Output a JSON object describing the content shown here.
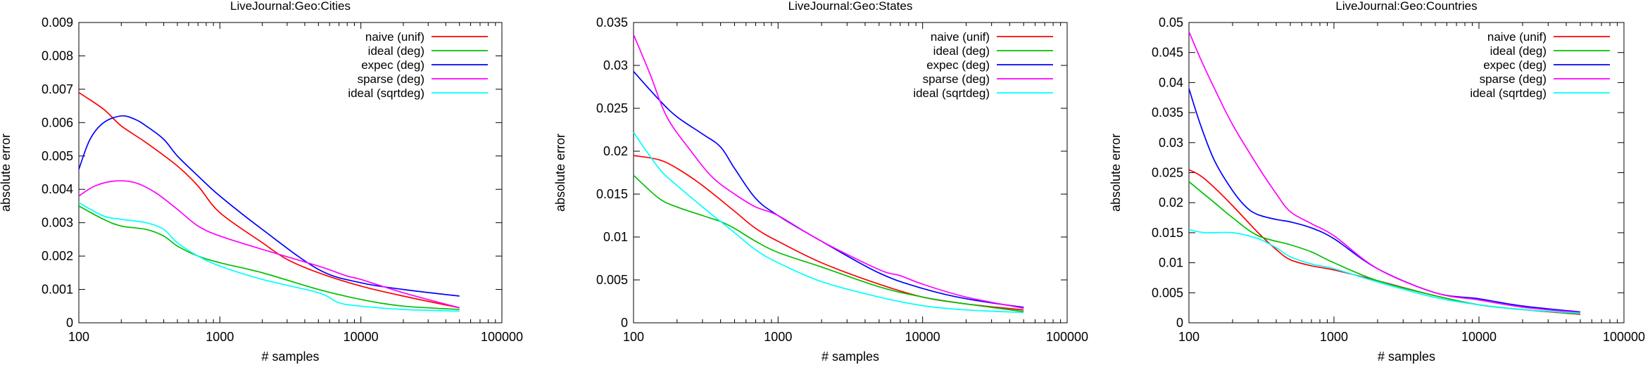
{
  "chart_data": [
    {
      "type": "line",
      "title": "LiveJournal:Geo:Cities",
      "xlabel": "# samples",
      "ylabel": "absolute error",
      "xscale": "log",
      "xlim": [
        100,
        100000
      ],
      "ylim": [
        0,
        0.009
      ],
      "xticks": [
        "100",
        "1000",
        "10000",
        "100000"
      ],
      "yticks": [
        "0",
        "0.001",
        "0.002",
        "0.003",
        "0.004",
        "0.005",
        "0.006",
        "0.007",
        "0.008",
        "0.009"
      ],
      "legend_position": "top-right",
      "series": [
        {
          "name": "naive (unif)",
          "color": "#ff0000",
          "x": [
            100,
            150,
            200,
            300,
            500,
            700,
            1000,
            2000,
            3000,
            5000,
            10000,
            20000,
            50000
          ],
          "y": [
            0.0069,
            0.0064,
            0.0059,
            0.0054,
            0.0047,
            0.0041,
            0.0033,
            0.0024,
            0.0019,
            0.0015,
            0.0011,
            0.0008,
            0.00045
          ]
        },
        {
          "name": "ideal (deg)",
          "color": "#00c000",
          "x": [
            100,
            150,
            200,
            300,
            400,
            500,
            700,
            1000,
            2000,
            5000,
            10000,
            20000,
            50000
          ],
          "y": [
            0.0035,
            0.0031,
            0.0029,
            0.0028,
            0.0026,
            0.0023,
            0.002,
            0.0018,
            0.0015,
            0.001,
            0.0007,
            0.0005,
            0.0004
          ]
        },
        {
          "name": "expec (deg)",
          "color": "#0000ff",
          "x": [
            100,
            120,
            150,
            200,
            250,
            300,
            400,
            500,
            700,
            1000,
            2000,
            5000,
            10000,
            20000,
            50000
          ],
          "y": [
            0.0046,
            0.0055,
            0.006,
            0.0062,
            0.0061,
            0.0059,
            0.0055,
            0.005,
            0.0044,
            0.0038,
            0.0028,
            0.0016,
            0.0012,
            0.001,
            0.0008
          ]
        },
        {
          "name": "sparse (deg)",
          "color": "#ff00ff",
          "x": [
            100,
            130,
            180,
            250,
            350,
            500,
            700,
            1000,
            2000,
            5000,
            8000,
            10000,
            20000,
            50000
          ],
          "y": [
            0.0038,
            0.0041,
            0.00425,
            0.0042,
            0.0039,
            0.0034,
            0.0029,
            0.0026,
            0.0022,
            0.0017,
            0.0014,
            0.0013,
            0.0009,
            0.00045
          ]
        },
        {
          "name": "ideal (sqrtdeg)",
          "color": "#00ffff",
          "x": [
            100,
            150,
            200,
            300,
            400,
            500,
            700,
            1000,
            2000,
            5000,
            7000,
            10000,
            20000,
            50000
          ],
          "y": [
            0.0036,
            0.0032,
            0.0031,
            0.003,
            0.0028,
            0.0024,
            0.002,
            0.0017,
            0.0013,
            0.0009,
            0.0006,
            0.0005,
            0.0004,
            0.00035
          ]
        }
      ]
    },
    {
      "type": "line",
      "title": "LiveJournal:Geo:States",
      "xlabel": "# samples",
      "ylabel": "absolute error",
      "xscale": "log",
      "xlim": [
        100,
        100000
      ],
      "ylim": [
        0,
        0.035
      ],
      "xticks": [
        "100",
        "1000",
        "10000",
        "100000"
      ],
      "yticks": [
        "0",
        "0.005",
        "0.01",
        "0.015",
        "0.02",
        "0.025",
        "0.03",
        "0.035"
      ],
      "legend_position": "top-right",
      "series": [
        {
          "name": "naive (unif)",
          "color": "#ff0000",
          "x": [
            100,
            150,
            200,
            300,
            500,
            700,
            1000,
            2000,
            5000,
            10000,
            20000,
            50000
          ],
          "y": [
            0.0195,
            0.019,
            0.018,
            0.016,
            0.013,
            0.011,
            0.0095,
            0.007,
            0.0045,
            0.003,
            0.0022,
            0.0015
          ]
        },
        {
          "name": "ideal (deg)",
          "color": "#00c000",
          "x": [
            100,
            150,
            200,
            300,
            400,
            500,
            700,
            1000,
            2000,
            5000,
            10000,
            20000,
            50000
          ],
          "y": [
            0.0172,
            0.0145,
            0.0135,
            0.0125,
            0.0118,
            0.011,
            0.0095,
            0.0082,
            0.0065,
            0.0042,
            0.003,
            0.0022,
            0.0013
          ]
        },
        {
          "name": "expec (deg)",
          "color": "#0000ff",
          "x": [
            100,
            150,
            200,
            300,
            400,
            500,
            700,
            1000,
            2000,
            5000,
            10000,
            20000,
            50000
          ],
          "y": [
            0.0293,
            0.026,
            0.024,
            0.022,
            0.0205,
            0.018,
            0.0145,
            0.0125,
            0.0095,
            0.0058,
            0.004,
            0.0028,
            0.0018
          ]
        },
        {
          "name": "sparse (deg)",
          "color": "#ff00ff",
          "x": [
            100,
            130,
            170,
            250,
            350,
            500,
            700,
            1000,
            2000,
            5000,
            7000,
            10000,
            20000,
            50000
          ],
          "y": [
            0.0336,
            0.029,
            0.024,
            0.02,
            0.017,
            0.015,
            0.0135,
            0.0125,
            0.0095,
            0.0062,
            0.0055,
            0.0045,
            0.003,
            0.0017
          ]
        },
        {
          "name": "ideal (sqrtdeg)",
          "color": "#00ffff",
          "x": [
            100,
            150,
            200,
            300,
            500,
            700,
            1000,
            2000,
            5000,
            10000,
            20000,
            50000
          ],
          "y": [
            0.0222,
            0.018,
            0.016,
            0.0135,
            0.0105,
            0.0085,
            0.007,
            0.0048,
            0.003,
            0.002,
            0.0015,
            0.0012
          ]
        }
      ]
    },
    {
      "type": "line",
      "title": "LiveJournal:Geo:Countries",
      "xlabel": "# samples",
      "ylabel": "absolute error",
      "xscale": "log",
      "xlim": [
        100,
        100000
      ],
      "ylim": [
        0,
        0.05
      ],
      "xticks": [
        "100",
        "1000",
        "10000",
        "100000"
      ],
      "yticks": [
        "0",
        "0.005",
        "0.01",
        "0.015",
        "0.02",
        "0.025",
        "0.03",
        "0.035",
        "0.04",
        "0.045",
        "0.05"
      ],
      "legend_position": "top-right",
      "series": [
        {
          "name": "naive (unif)",
          "color": "#ff0000",
          "x": [
            100,
            120,
            150,
            200,
            300,
            400,
            500,
            700,
            1000,
            2000,
            5000,
            10000,
            20000,
            50000
          ],
          "y": [
            0.0255,
            0.0245,
            0.0225,
            0.0195,
            0.015,
            0.0122,
            0.0105,
            0.0095,
            0.0088,
            0.007,
            0.0045,
            0.003,
            0.0022,
            0.0014
          ]
        },
        {
          "name": "ideal (deg)",
          "color": "#00c000",
          "x": [
            100,
            150,
            200,
            300,
            500,
            700,
            1000,
            2000,
            5000,
            10000,
            20000,
            50000
          ],
          "y": [
            0.0235,
            0.02,
            0.0175,
            0.0145,
            0.013,
            0.0118,
            0.01,
            0.007,
            0.0045,
            0.003,
            0.0022,
            0.0015
          ]
        },
        {
          "name": "expec (deg)",
          "color": "#0000ff",
          "x": [
            100,
            120,
            150,
            200,
            250,
            300,
            400,
            500,
            700,
            1000,
            2000,
            5000,
            10000,
            20000,
            50000
          ],
          "y": [
            0.039,
            0.033,
            0.027,
            0.022,
            0.0192,
            0.018,
            0.0172,
            0.0168,
            0.0158,
            0.014,
            0.009,
            0.005,
            0.004,
            0.0028,
            0.0018
          ]
        },
        {
          "name": "sparse (deg)",
          "color": "#ff00ff",
          "x": [
            100,
            120,
            150,
            200,
            300,
            400,
            500,
            700,
            1000,
            2000,
            5000,
            10000,
            20000,
            50000
          ],
          "y": [
            0.0485,
            0.044,
            0.039,
            0.033,
            0.026,
            0.0215,
            0.0185,
            0.0165,
            0.0145,
            0.009,
            0.005,
            0.0038,
            0.0026,
            0.0017
          ]
        },
        {
          "name": "ideal (sqrtdeg)",
          "color": "#00ffff",
          "x": [
            100,
            130,
            200,
            300,
            400,
            500,
            700,
            1000,
            2000,
            5000,
            10000,
            20000,
            50000
          ],
          "y": [
            0.0155,
            0.015,
            0.015,
            0.014,
            0.0125,
            0.011,
            0.0098,
            0.009,
            0.0068,
            0.0042,
            0.003,
            0.0022,
            0.0016
          ]
        }
      ]
    }
  ]
}
